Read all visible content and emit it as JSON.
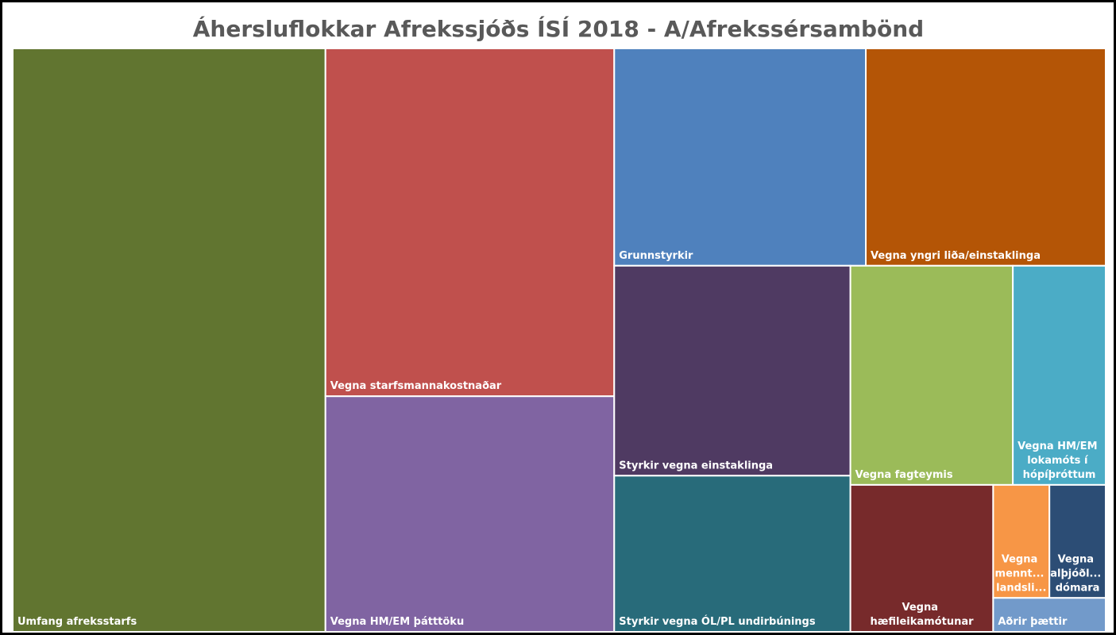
{
  "chart_data": {
    "type": "treemap",
    "title": "Áhersluflokkar Afrekssjóðs ÍSÍ 2018 - A/Afrekssérsambönd",
    "categories": [
      "Umfang afreksstarfs",
      "Vegna starfsmannakostnaðar",
      "Vegna HM/EM þátttöku",
      "Grunnstyrkir",
      "Vegna yngri liða/einstaklinga",
      "Styrkir vegna einstaklinga",
      "Styrkir vegna ÓL/PL undirbúnings",
      "Vegna fagteymis",
      "Vegna HM/EM lokamóts í hópíþróttum",
      "Vegna hæfileikamótunar",
      "Vegna mennt... landsli...",
      "Vegna alþjóðl... dómara",
      "Aðrir þættir"
    ],
    "values": [
      28.7,
      15.8,
      10.7,
      8.6,
      8.2,
      7.8,
      5.8,
      5.6,
      3.2,
      3.3,
      1.0,
      1.0,
      0.6
    ],
    "colors": [
      "#617530",
      "#c0504d",
      "#8064a2",
      "#4f81bd",
      "#b45506",
      "#4f3a62",
      "#286b7a",
      "#9bbb59",
      "#4bacc6",
      "#772a2b",
      "#f79646",
      "#2c4d75",
      "#729aca"
    ]
  }
}
